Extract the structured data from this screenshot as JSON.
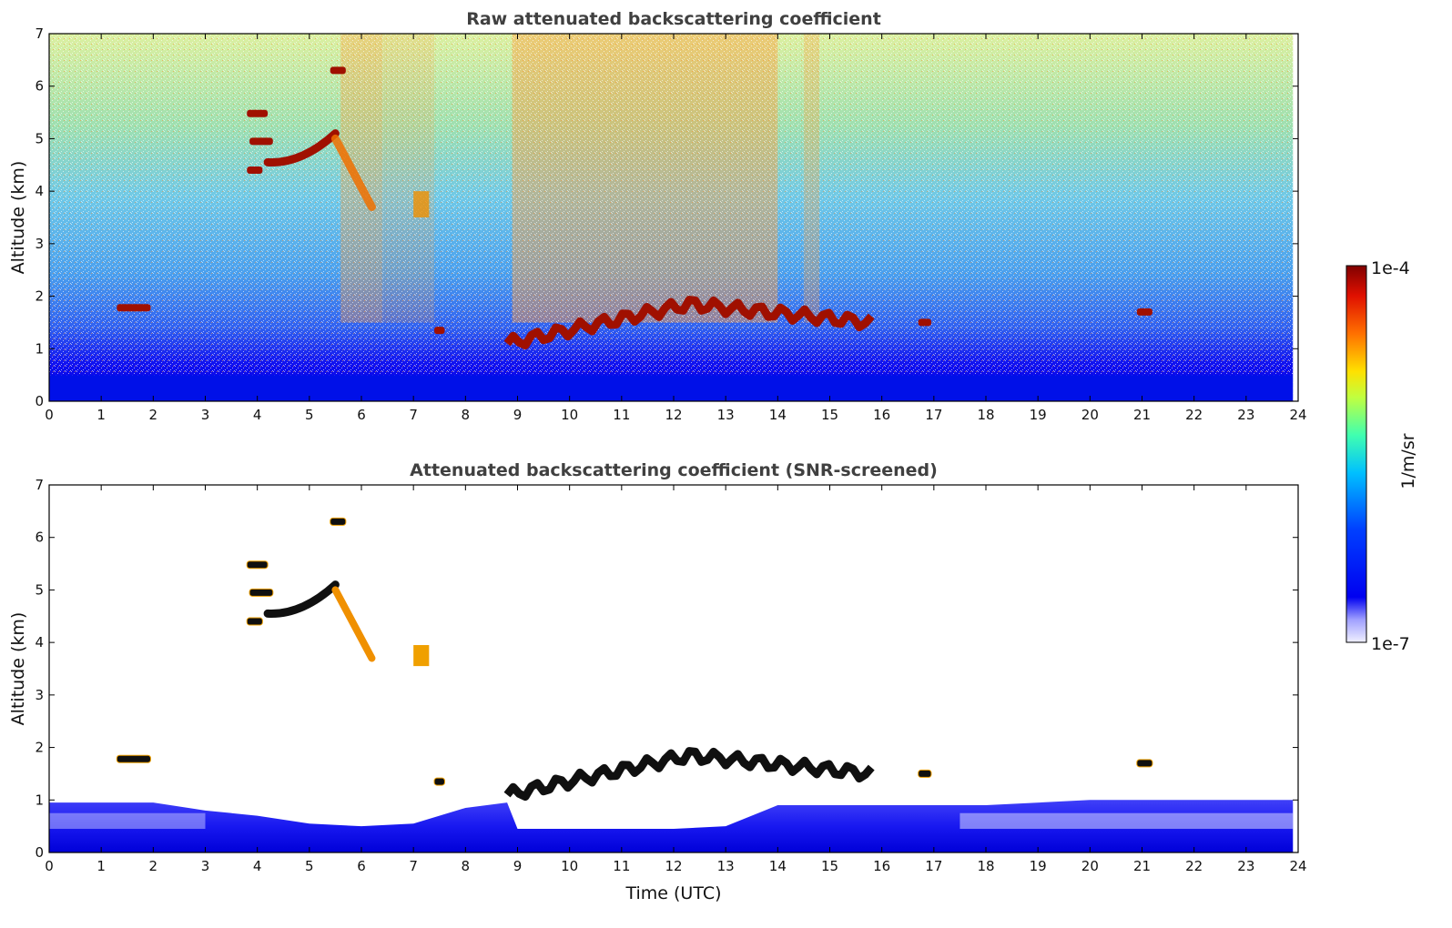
{
  "chart_data": [
    {
      "type": "heatmap",
      "title": "Raw attenuated backscattering coefficient",
      "xlabel": "",
      "ylabel": "Altitude (km)",
      "xlim": [
        0,
        24
      ],
      "ylim": [
        0,
        7
      ],
      "xticks": [
        "0",
        "1",
        "2",
        "3",
        "4",
        "5",
        "6",
        "7",
        "8",
        "9",
        "10",
        "11",
        "12",
        "13",
        "14",
        "15",
        "16",
        "17",
        "18",
        "19",
        "20",
        "21",
        "22",
        "23",
        "24"
      ],
      "yticks": [
        "0",
        "1",
        "2",
        "3",
        "4",
        "5",
        "6",
        "7"
      ],
      "colormap": "jet",
      "log_scale": true,
      "features": [
        {
          "kind": "boundary_layer",
          "t_start": 0,
          "t_end": 23.9,
          "alt_top": 0.5
        },
        {
          "kind": "cloud",
          "t_start": 1.3,
          "t_end": 1.95,
          "alt": 1.78
        },
        {
          "kind": "cloud",
          "t_start": 3.8,
          "t_end": 4.2,
          "alt": 5.48
        },
        {
          "kind": "cloud",
          "t_start": 3.85,
          "t_end": 4.3,
          "alt": 4.95
        },
        {
          "kind": "cloud",
          "t_start": 3.8,
          "t_end": 4.1,
          "alt": 4.4
        },
        {
          "kind": "cloud_arc",
          "t_start": 4.2,
          "t_end": 5.5,
          "alt_start": 4.55,
          "alt_end": 5.1
        },
        {
          "kind": "cloud",
          "t_start": 5.4,
          "t_end": 5.7,
          "alt": 6.3
        },
        {
          "kind": "fallstreak",
          "t_start": 5.5,
          "t_end": 6.2,
          "alt_start": 5.0,
          "alt_end": 3.7
        },
        {
          "kind": "virga",
          "t_start": 7.0,
          "t_end": 7.3,
          "alt": 3.7
        },
        {
          "kind": "cloud",
          "t_start": 7.4,
          "t_end": 7.6,
          "alt": 1.35
        },
        {
          "kind": "cloud_layer",
          "t_start": 8.8,
          "t_end": 15.8,
          "alt_start": 1.1,
          "alt_peak": 1.85,
          "alt_end": 1.5
        },
        {
          "kind": "cloud",
          "t_start": 16.7,
          "t_end": 16.95,
          "alt": 1.5
        },
        {
          "kind": "cloud",
          "t_start": 20.9,
          "t_end": 21.2,
          "alt": 1.7
        }
      ]
    },
    {
      "type": "heatmap",
      "title": "Attenuated backscattering coefficient (SNR-screened)",
      "xlabel": "Time (UTC)",
      "ylabel": "Altitude (km)",
      "xlim": [
        0,
        24
      ],
      "ylim": [
        0,
        7
      ],
      "xticks": [
        "0",
        "1",
        "2",
        "3",
        "4",
        "5",
        "6",
        "7",
        "8",
        "9",
        "10",
        "11",
        "12",
        "13",
        "14",
        "15",
        "16",
        "17",
        "18",
        "19",
        "20",
        "21",
        "22",
        "23",
        "24"
      ],
      "yticks": [
        "0",
        "1",
        "2",
        "3",
        "4",
        "5",
        "6",
        "7"
      ],
      "colormap": "jet",
      "log_scale": true,
      "boundary_layer_top": [
        [
          0,
          0.95
        ],
        [
          2,
          0.95
        ],
        [
          3,
          0.8
        ],
        [
          4,
          0.7
        ],
        [
          5,
          0.55
        ],
        [
          6,
          0.5
        ],
        [
          7,
          0.55
        ],
        [
          8,
          0.85
        ],
        [
          8.8,
          0.95
        ],
        [
          9,
          0.45
        ],
        [
          10,
          0.45
        ],
        [
          11,
          0.45
        ],
        [
          12,
          0.45
        ],
        [
          13,
          0.5
        ],
        [
          14,
          0.9
        ],
        [
          15,
          0.9
        ],
        [
          16,
          0.9
        ],
        [
          17,
          0.9
        ],
        [
          18,
          0.9
        ],
        [
          20,
          1.0
        ],
        [
          22,
          1.0
        ],
        [
          23.9,
          1.0
        ]
      ]
    }
  ],
  "colorbar": {
    "max_label": "1e-4",
    "min_label": "1e-7",
    "label": "1/m/sr",
    "colors": [
      "#7f0000",
      "#d41000",
      "#ff4a00",
      "#ff9a00",
      "#ffe600",
      "#b8ff40",
      "#50ffa0",
      "#00d8ff",
      "#0080ff",
      "#1020ff",
      "#0000e0",
      "#6060ff",
      "#c8c8ff",
      "#f0f0ff"
    ]
  }
}
